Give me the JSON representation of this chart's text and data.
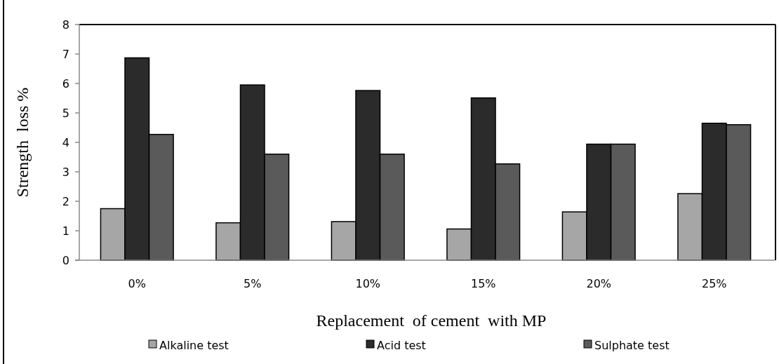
{
  "chart_data": {
    "type": "bar",
    "xlabel": "Replacement  of cement  with MP",
    "ylabel": "Strength  loss %",
    "categories": [
      "0%",
      "5%",
      "10%",
      "15%",
      "20%",
      "25%"
    ],
    "series": [
      {
        "name": "Alkaline test",
        "color": "#a6a6a6",
        "values": [
          1.75,
          1.27,
          1.31,
          1.06,
          1.64,
          2.26
        ]
      },
      {
        "name": "Acid test",
        "color": "#2b2b2b",
        "values": [
          6.87,
          5.95,
          5.76,
          5.51,
          3.94,
          4.65
        ]
      },
      {
        "name": "Sulphate test",
        "color": "#5a5a5a",
        "values": [
          4.27,
          3.6,
          3.6,
          3.27,
          3.94,
          4.6
        ]
      }
    ],
    "ylim": [
      0,
      8
    ],
    "yticks": [
      0,
      1,
      2,
      3,
      4,
      5,
      6,
      7,
      8
    ],
    "grid": false,
    "legend": "bottom"
  }
}
